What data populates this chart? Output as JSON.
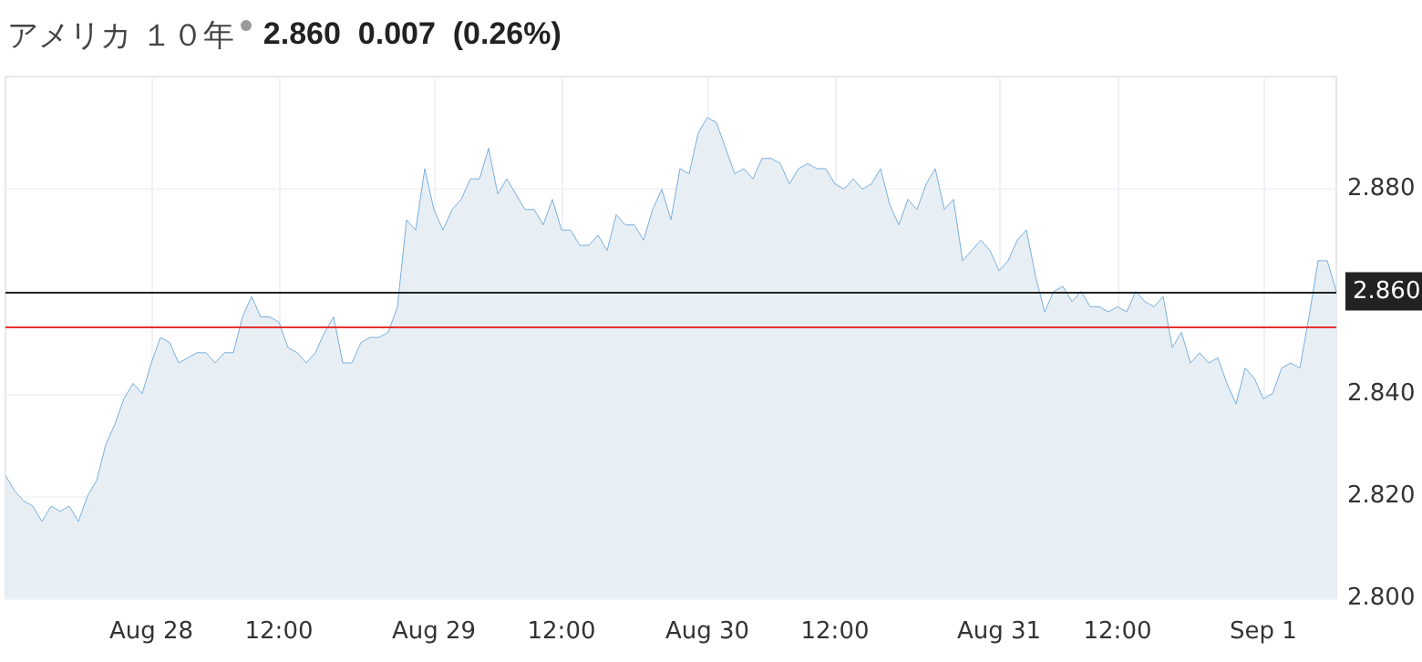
{
  "chart_data": {
    "type": "area",
    "title": "アメリカ １０年",
    "subtitle": "2.860  0.007  (0.26%)",
    "categories": [
      null,
      null,
      null,
      null,
      null,
      null,
      null,
      null,
      null,
      null,
      null,
      null,
      null,
      null,
      null,
      null,
      "Aug 28",
      null,
      null,
      null,
      null,
      null,
      null,
      null,
      null,
      null,
      null,
      null,
      null,
      null,
      "12:00",
      null,
      null,
      null,
      null,
      null,
      null,
      null,
      null,
      null,
      null,
      null,
      null,
      null,
      null,
      null,
      null,
      "Aug 29",
      null,
      null,
      null,
      null,
      null,
      null,
      null,
      null,
      null,
      null,
      null,
      null,
      null,
      "12:00",
      null,
      null,
      null,
      null,
      null,
      null,
      null,
      null,
      null,
      null,
      null,
      null,
      null,
      null,
      null,
      "Aug 30",
      null,
      null,
      null,
      null,
      null,
      null,
      null,
      null,
      null,
      null,
      null,
      null,
      null,
      "12:00",
      null,
      null,
      null,
      null,
      null,
      null,
      null,
      null,
      null,
      null,
      null,
      null,
      null,
      null,
      null,
      null,
      null,
      "Aug 31",
      null,
      null,
      null,
      null,
      null,
      null,
      null,
      null,
      null,
      null,
      null,
      null,
      "12:00",
      null,
      null,
      null,
      null,
      null,
      null,
      null,
      null,
      null,
      null,
      null,
      null,
      null,
      null,
      null,
      "Sep 1",
      null,
      null,
      null,
      null,
      null,
      null,
      null,
      null
    ],
    "series": [
      {
        "color": "#7aaedc",
        "values": [
          2.824,
          2.821,
          2.819,
          2.818,
          2.815,
          2.818,
          2.817,
          2.818,
          2.815,
          2.82,
          2.823,
          2.83,
          2.834,
          2.839,
          2.842,
          2.84,
          2.846,
          2.851,
          2.85,
          2.846,
          2.847,
          2.848,
          2.848,
          2.846,
          2.848,
          2.848,
          2.855,
          2.859,
          2.855,
          2.855,
          2.854,
          2.849,
          2.848,
          2.846,
          2.848,
          2.852,
          2.855,
          2.846,
          2.846,
          2.85,
          2.851,
          2.851,
          2.852,
          2.857,
          2.874,
          2.872,
          2.884,
          2.876,
          2.872,
          2.876,
          2.878,
          2.882,
          2.882,
          2.888,
          2.879,
          2.882,
          2.879,
          2.876,
          2.876,
          2.873,
          2.878,
          2.872,
          2.872,
          2.869,
          2.869,
          2.871,
          2.868,
          2.875,
          2.873,
          2.873,
          2.87,
          2.876,
          2.88,
          2.874,
          2.884,
          2.883,
          2.891,
          2.894,
          2.893,
          2.888,
          2.883,
          2.884,
          2.882,
          2.886,
          2.886,
          2.885,
          2.881,
          2.884,
          2.885,
          2.884,
          2.884,
          2.881,
          2.88,
          2.882,
          2.88,
          2.881,
          2.884,
          2.877,
          2.873,
          2.878,
          2.876,
          2.881,
          2.884,
          2.876,
          2.878,
          2.866,
          2.868,
          2.87,
          2.868,
          2.864,
          2.866,
          2.87,
          2.872,
          2.863,
          2.856,
          2.86,
          2.861,
          2.858,
          2.86,
          2.857,
          2.857,
          2.856,
          2.857,
          2.856,
          2.86,
          2.858,
          2.857,
          2.859,
          2.849,
          2.852,
          2.846,
          2.848,
          2.846,
          2.847,
          2.842,
          2.838,
          2.845,
          2.843,
          2.839,
          2.84,
          2.845,
          2.846,
          2.845,
          2.855,
          2.866,
          2.866,
          2.86
        ]
      }
    ],
    "ylim": [
      2.8,
      2.902
    ],
    "yticks": [
      {
        "value": 2.8,
        "label": "2.800"
      },
      {
        "value": 2.82,
        "label": "2.820"
      },
      {
        "value": 2.84,
        "label": "2.840"
      },
      {
        "value": 2.86,
        "label": null
      },
      {
        "value": 2.88,
        "label": "2.880"
      }
    ],
    "ref_lines": [
      {
        "axis": "y",
        "value": 2.86,
        "label": "2.860",
        "color": "#222222"
      },
      {
        "axis": "y",
        "value": 2.853,
        "color": "#e8312f"
      }
    ],
    "grid": true,
    "legend": false,
    "marker": "none",
    "line_style": "solid"
  }
}
